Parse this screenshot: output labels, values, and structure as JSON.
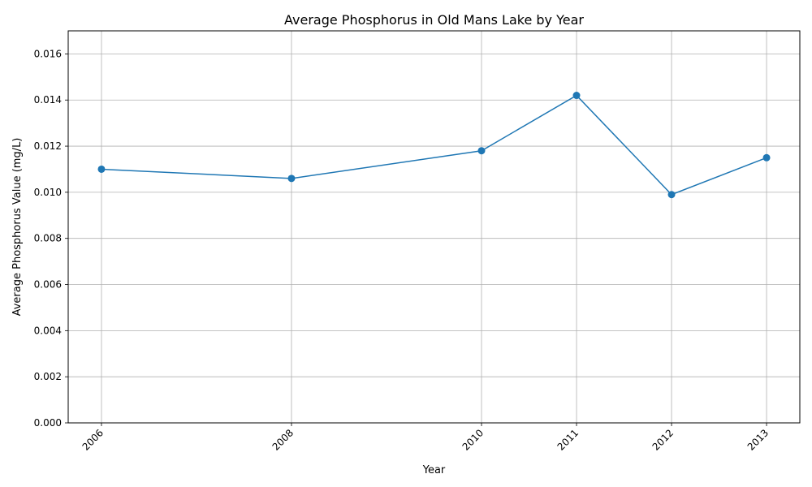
{
  "chart_data": {
    "type": "line",
    "title": "Average Phosphorus in Old Mans Lake by Year",
    "xlabel": "Year",
    "ylabel": "Average Phosphorus Value (mg/L)",
    "x": [
      2006,
      2008,
      2010,
      2011,
      2012,
      2013
    ],
    "x_tick_labels": [
      "2006",
      "2008",
      "2010",
      "2011",
      "2012",
      "2013"
    ],
    "y_ticks": [
      "0.000",
      "0.002",
      "0.004",
      "0.006",
      "0.008",
      "0.010",
      "0.012",
      "0.014",
      "0.016"
    ],
    "series": [
      {
        "values": [
          0.011,
          0.0106,
          0.0118,
          0.0142,
          0.0099,
          0.0115
        ]
      }
    ],
    "xlim": [
      2005.65,
      2013.35
    ],
    "ylim": [
      0,
      0.017
    ],
    "grid": true,
    "colors": {
      "line": "#1f77b4",
      "grid": "#b0b0b0",
      "axes": "#000000"
    }
  }
}
